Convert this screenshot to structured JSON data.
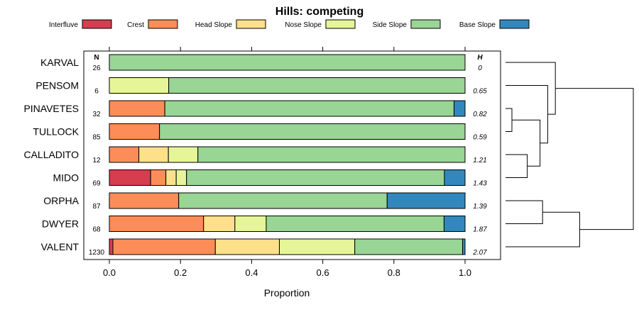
{
  "chart_data": {
    "type": "bar",
    "orientation": "horizontal-stacked",
    "title": "Hills: competing",
    "xlabel": "Proportion",
    "ylabel": "",
    "xlim": [
      0,
      1
    ],
    "xticks": [
      "0.0",
      "0.2",
      "0.4",
      "0.6",
      "0.8",
      "1.0"
    ],
    "xtick_values": [
      0,
      0.2,
      0.4,
      0.6,
      0.8,
      1.0
    ],
    "n_header": "N",
    "h_header": "H",
    "legend": [
      {
        "name": "Interfluve",
        "color": "#d53e4f"
      },
      {
        "name": "Crest",
        "color": "#fc8d59"
      },
      {
        "name": "Head Slope",
        "color": "#fee08b"
      },
      {
        "name": "Nose Slope",
        "color": "#e6f598"
      },
      {
        "name": "Side Slope",
        "color": "#99d594"
      },
      {
        "name": "Base Slope",
        "color": "#3288bd"
      }
    ],
    "rows": [
      {
        "name": "KARVAL",
        "n": "26",
        "h": "0",
        "values": [
          0,
          0,
          0,
          0,
          1.0,
          0
        ]
      },
      {
        "name": "PENSOM",
        "n": "6",
        "h": "0.65",
        "values": [
          0,
          0,
          0,
          0.167,
          0.833,
          0
        ]
      },
      {
        "name": "PINAVETES",
        "n": "32",
        "h": "0.82",
        "values": [
          0,
          0.156,
          0,
          0,
          0.813,
          0.031
        ]
      },
      {
        "name": "TULLOCK",
        "n": "85",
        "h": "0.59",
        "values": [
          0,
          0.141,
          0,
          0,
          0.859,
          0
        ]
      },
      {
        "name": "CALLADITO",
        "n": "12",
        "h": "1.21",
        "values": [
          0,
          0.083,
          0.083,
          0.083,
          0.751,
          0
        ]
      },
      {
        "name": "MIDO",
        "n": "69",
        "h": "1.43",
        "values": [
          0.116,
          0.043,
          0.029,
          0.029,
          0.725,
          0.058
        ]
      },
      {
        "name": "ORPHA",
        "n": "87",
        "h": "1.39",
        "values": [
          0,
          0.195,
          0,
          0,
          0.586,
          0.219
        ]
      },
      {
        "name": "DWYER",
        "n": "68",
        "h": "1.87",
        "values": [
          0,
          0.265,
          0.088,
          0.088,
          0.5,
          0.059
        ]
      },
      {
        "name": "VALENT",
        "n": "1230",
        "h": "2.07",
        "values": [
          0.01,
          0.288,
          0.18,
          0.212,
          0.303,
          0.007
        ]
      }
    ],
    "dendrogram": {
      "leaf_order": [
        "KARVAL",
        "PENSOM",
        "PINAVETES",
        "TULLOCK",
        "CALLADITO",
        "MIDO",
        "ORPHA",
        "DWYER",
        "VALENT"
      ],
      "merges": [
        {
          "children": [
            "PINAVETES",
            "TULLOCK"
          ],
          "height": 0.05
        },
        {
          "children": [
            "CALLADITO",
            "MIDO"
          ],
          "height": 0.17
        },
        {
          "children": [
            "M0",
            "M1"
          ],
          "height": 0.27
        },
        {
          "children": [
            "PENSOM",
            "M2"
          ],
          "height": 0.33
        },
        {
          "children": [
            "KARVAL",
            "M3"
          ],
          "height": 0.39
        },
        {
          "children": [
            "ORPHA",
            "DWYER"
          ],
          "height": 0.29
        },
        {
          "children": [
            "M5",
            "VALENT"
          ],
          "height": 0.58
        },
        {
          "children": [
            "M4",
            "M6"
          ],
          "height": 1.0
        }
      ]
    }
  }
}
